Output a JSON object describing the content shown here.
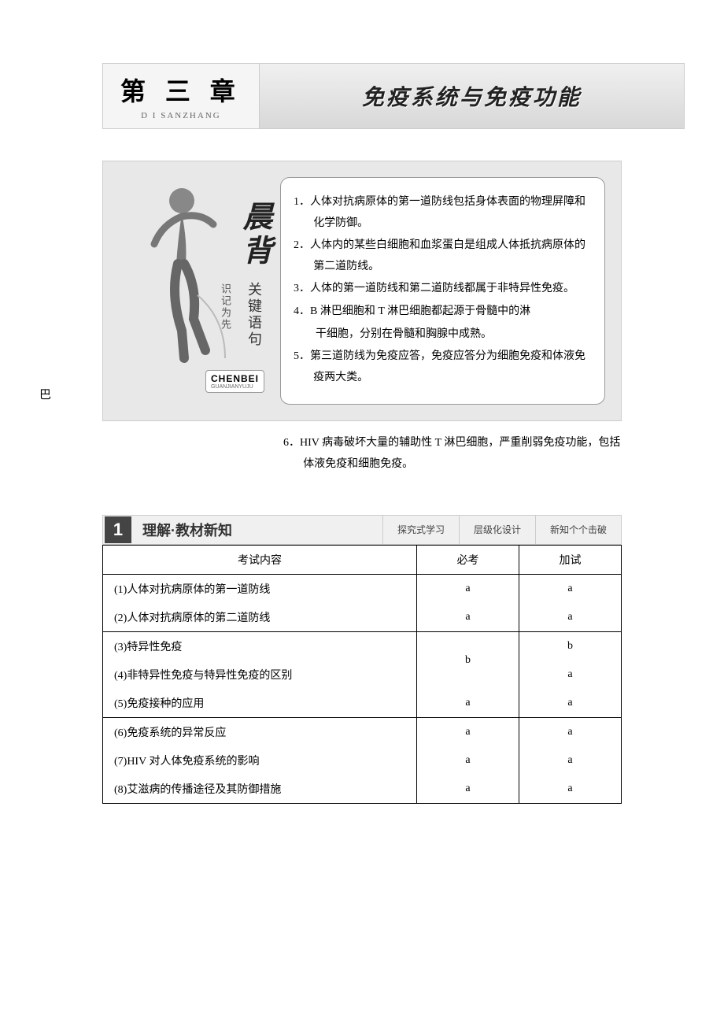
{
  "chapter": {
    "label": "第 三 章",
    "pinyin": "D I SANZHANG",
    "title": "免疫系统与免疫功能"
  },
  "review": {
    "big_chars": "晨背",
    "small_chars": "关键语句",
    "shiji": "识记为先",
    "pinyin_main": "CHENBEI",
    "pinyin_sub": "GUANJIANYUJU",
    "points_inside": [
      "1．人体对抗病原体的第一道防线包括身体表面的物理屏障和化学防御。",
      "2．人体内的某些白细胞和血浆蛋白是组成人体抵抗病原体的第二道防线。",
      "3．人体的第一道防线和第二道防线都属于非特异性免疫。",
      "4．B 淋巴细胞和 T 淋巴细胞都起源于骨髓中的淋",
      "　　干细胞，分别在骨髓和胸腺中成熟。",
      "5．第三道防线为免疫应答，免疫应答分为细胞免疫和体液免疫两大类。"
    ],
    "points_outside": [
      "6．HIV 病毒破坏大量的辅助性 T 淋巴细胞，严重削弱免疫功能，包括体液免疫和细胞免疫。"
    ]
  },
  "stray": "巴",
  "section": {
    "number": "1",
    "title": "理解·教材新知",
    "tags": [
      "探究式学习",
      "层级化设计",
      "新知个个击破"
    ]
  },
  "table": {
    "headers": [
      "考试内容",
      "必考",
      "加试"
    ],
    "rows": [
      {
        "content": "(1)人体对抗病原体的第一道防线",
        "req": "a",
        "ext": "a",
        "group": 1
      },
      {
        "content": "(2)人体对抗病原体的第二道防线",
        "req": "a",
        "ext": "a",
        "group": 1
      },
      {
        "content": "(3)特异性免疫",
        "req": "b",
        "ext": "b",
        "group": 2,
        "req_rowspan": 2
      },
      {
        "content": "(4)非特异性免疫与特异性免疫的区别",
        "req": null,
        "ext": "a",
        "group": 2
      },
      {
        "content": "(5)免疫接种的应用",
        "req": "a",
        "ext": "a",
        "group": 2
      },
      {
        "content": "(6)免疫系统的异常反应",
        "req": "a",
        "ext": "a",
        "group": 3
      },
      {
        "content": "(7)HIV 对人体免疫系统的影响",
        "req": "a",
        "ext": "a",
        "group": 3
      },
      {
        "content": "(8)艾滋病的传播途径及其防御措施",
        "req": "a",
        "ext": "a",
        "group": 3
      }
    ]
  },
  "colors": {
    "panel_bg": "#e8e8e8",
    "border": "#cccccc",
    "text": "#000000"
  }
}
